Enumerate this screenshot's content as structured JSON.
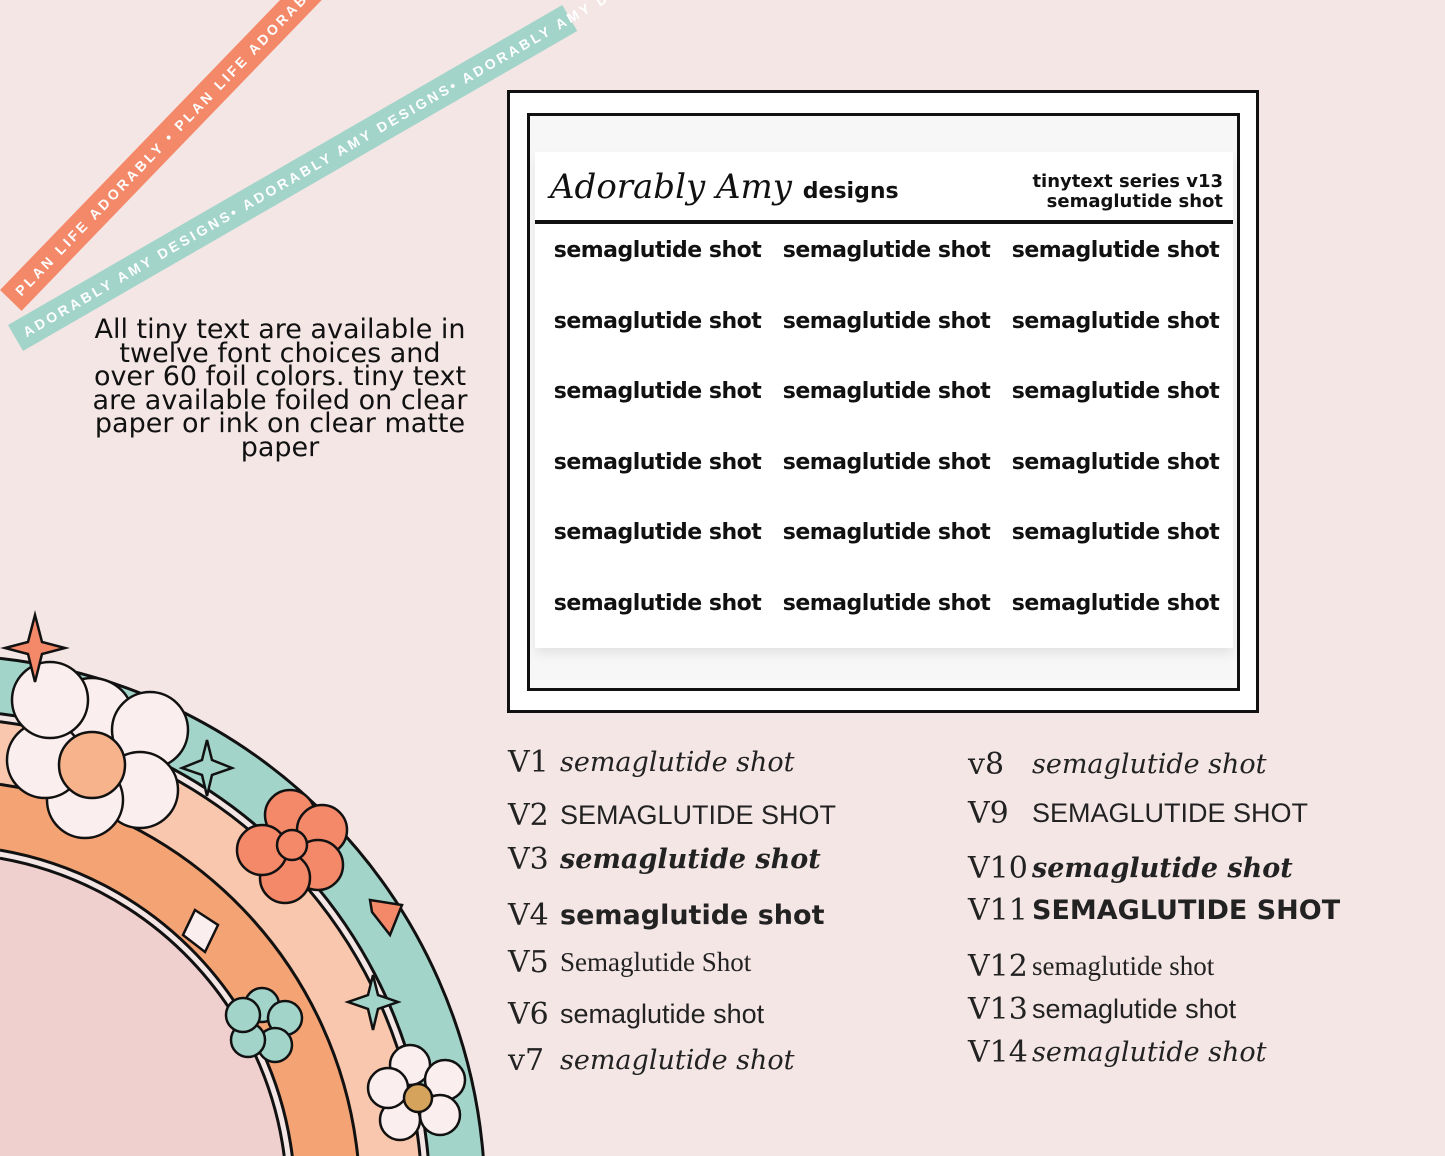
{
  "ribbons": {
    "coral": {
      "text": "PLAN LIFE ADORABLY • PLAN LIFE ADORABLY • PLAN LIFE ADORABLY",
      "color": "#f4896a"
    },
    "teal": {
      "text": "ADORABLY AMY DESIGNS• ADORABLY AMY DESIGNS• ADORABLY AMY DESIGNS",
      "color": "#a3d4ca"
    }
  },
  "description": "All tiny text are available in twelve font choices and over 60 foil colors.  tiny text are available foiled on clear paper or ink on clear matte paper",
  "sticker": {
    "logo_script": "Adorably Amy",
    "logo_word": "designs",
    "series": "tinytext series v13",
    "subtitle": "semaglutide shot",
    "cells": [
      "semaglutide shot",
      "semaglutide shot",
      "semaglutide shot",
      "semaglutide shot",
      "semaglutide shot",
      "semaglutide shot",
      "semaglutide shot",
      "semaglutide shot",
      "semaglutide shot",
      "semaglutide shot",
      "semaglutide shot",
      "semaglutide shot",
      "semaglutide shot",
      "semaglutide shot",
      "semaglutide shot",
      "semaglutide shot",
      "semaglutide shot",
      "semaglutide shot"
    ]
  },
  "versions_left": [
    {
      "label": "V1",
      "text": "semaglutide shot"
    },
    {
      "label": "V2",
      "text": "SEMAGLUTIDE SHOT"
    },
    {
      "label": "V3",
      "text": "semaglutide shot"
    },
    {
      "label": "V4",
      "text": "semaglutide shot"
    },
    {
      "label": "V5",
      "text": "Semaglutide Shot"
    },
    {
      "label": "V6",
      "text": "semaglutide shot"
    },
    {
      "label": "v7",
      "text": "semaglutide shot"
    }
  ],
  "versions_right": [
    {
      "label": "v8",
      "text": "semaglutide shot"
    },
    {
      "label": "V9",
      "text": "SEMAGLUTIDE SHOT"
    },
    {
      "label": "V10",
      "text": "semaglutide shot"
    },
    {
      "label": "V11",
      "text": "SEMAGLUTIDE SHOT"
    },
    {
      "label": "V12",
      "text": "semaglutide shot"
    },
    {
      "label": "V13",
      "text": "semaglutide shot"
    },
    {
      "label": "V14",
      "text": "semaglutide shot"
    }
  ],
  "colors": {
    "background": "#f5e6e6",
    "teal": "#a3d4ca",
    "peach": "#f9c7ad",
    "orange": "#f4a375",
    "pink": "#f0cfcf",
    "coral": "#f4896a"
  }
}
